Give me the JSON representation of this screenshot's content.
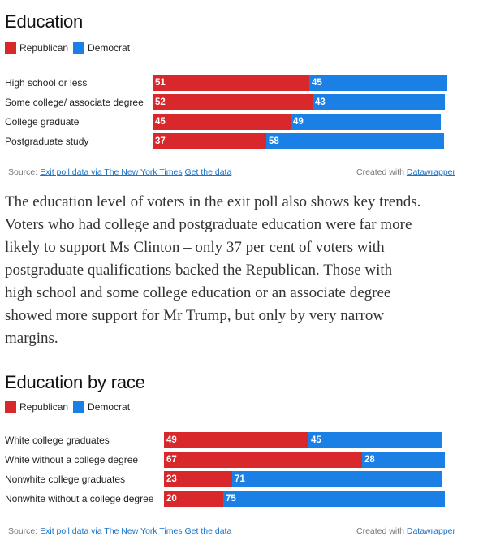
{
  "colors": {
    "republican": "#d9282b",
    "democrat": "#1a80e6"
  },
  "chart_data": [
    {
      "type": "bar",
      "orientation": "horizontal",
      "stacked": true,
      "title": "Education",
      "legend": [
        "Republican",
        "Democrat"
      ],
      "legend_position": "top-left",
      "categories": [
        "High school or less",
        "Some college/ associate degree",
        "College graduate",
        "Postgraduate study"
      ],
      "series": [
        {
          "name": "Republican",
          "values": [
            51,
            52,
            45,
            37
          ]
        },
        {
          "name": "Democrat",
          "values": [
            45,
            43,
            49,
            58
          ]
        }
      ],
      "source_prefix": "Source:",
      "source_link": "Exit poll data via The New York Times",
      "data_link": "Get the data",
      "credit_prefix": "Created with",
      "credit_link": "Datawrapper"
    },
    {
      "type": "bar",
      "orientation": "horizontal",
      "stacked": true,
      "title": "Education by race",
      "legend": [
        "Republican",
        "Democrat"
      ],
      "legend_position": "top-left",
      "categories": [
        "White college graduates",
        "White without a college degree",
        "Nonwhite college graduates",
        "Nonwhite without a college degree"
      ],
      "series": [
        {
          "name": "Republican",
          "values": [
            49,
            67,
            23,
            20
          ]
        },
        {
          "name": "Democrat",
          "values": [
            45,
            28,
            71,
            75
          ]
        }
      ],
      "source_prefix": "Source:",
      "source_link": "Exit poll data via The New York Times",
      "data_link": "Get the data",
      "credit_prefix": "Created with",
      "credit_link": "Datawrapper"
    }
  ],
  "paragraph": {
    "lines": [
      "The education level of voters in the exit poll also shows key trends.",
      "Voters who had college and postgraduate education were far more",
      "likely to support Ms Clinton – only 37 per cent of voters with",
      "postgraduate qualifications backed the Republican. Those with",
      "high school and some college education or an associate degree",
      "showed more support for Mr Trump, but only by very narrow",
      "margins."
    ]
  }
}
